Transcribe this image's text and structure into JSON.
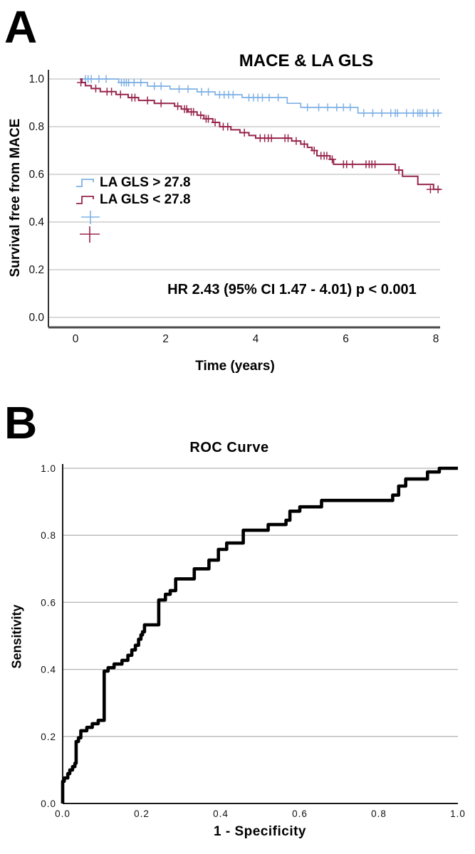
{
  "figure": {
    "panel_a_label": "A",
    "panel_b_label": "B"
  },
  "chart_data": [
    {
      "type": "line",
      "subtype": "kaplan-meier-step",
      "title": "MACE & LA GLS",
      "xlabel": "Time (years)",
      "ylabel": "Survival free from MACE",
      "annotation": "HR 2.43 (95% CI 1.47 - 4.01) p < 0.001",
      "grid": true,
      "legend_position": "inside-left",
      "xlim": [
        -0.6,
        8.7
      ],
      "ylim": [
        0.0,
        1.04
      ],
      "x_ticks": [
        {
          "value": 0,
          "label": "0"
        },
        {
          "value": 2,
          "label": "2"
        },
        {
          "value": 4,
          "label": "4"
        },
        {
          "value": 6,
          "label": "6"
        },
        {
          "value": 8,
          "label": "8"
        }
      ],
      "y_ticks": [
        {
          "value": 1.0,
          "label": "1.0"
        },
        {
          "value": 0.8,
          "label": "0.8"
        },
        {
          "value": 0.6,
          "label": "0.6"
        },
        {
          "value": 0.4,
          "label": "0.4"
        },
        {
          "value": 0.2,
          "label": "0.2"
        },
        {
          "value": 0.0,
          "label": "0.0"
        }
      ],
      "legend": [
        {
          "label": "LA GLS > 27.8"
        },
        {
          "label": "LA GLS < 27.8"
        }
      ],
      "series": [
        {
          "name": "LA GLS > 27.8",
          "color": "#7FB1E5",
          "steps": [
            [
              0.12,
              1.0
            ],
            [
              0.96,
              0.985
            ],
            [
              1.6,
              0.97
            ],
            [
              2.1,
              0.958
            ],
            [
              2.7,
              0.946
            ],
            [
              3.1,
              0.934
            ],
            [
              3.7,
              0.922
            ],
            [
              4.7,
              0.898
            ],
            [
              5.0,
              0.881
            ],
            [
              6.27,
              0.857
            ],
            [
              8.1,
              0.857
            ]
          ],
          "censors": [
            [
              0.22,
              1.0
            ],
            [
              0.28,
              1.0
            ],
            [
              0.35,
              1.0
            ],
            [
              0.52,
              1.0
            ],
            [
              0.68,
              1.0
            ],
            [
              1.02,
              0.985
            ],
            [
              1.08,
              0.985
            ],
            [
              1.13,
              0.985
            ],
            [
              1.18,
              0.985
            ],
            [
              1.3,
              0.985
            ],
            [
              1.45,
              0.985
            ],
            [
              1.75,
              0.97
            ],
            [
              1.9,
              0.97
            ],
            [
              2.3,
              0.958
            ],
            [
              2.5,
              0.958
            ],
            [
              2.8,
              0.946
            ],
            [
              2.95,
              0.946
            ],
            [
              3.2,
              0.934
            ],
            [
              3.3,
              0.934
            ],
            [
              3.4,
              0.934
            ],
            [
              3.5,
              0.934
            ],
            [
              3.85,
              0.922
            ],
            [
              3.95,
              0.922
            ],
            [
              4.05,
              0.922
            ],
            [
              4.15,
              0.922
            ],
            [
              4.3,
              0.922
            ],
            [
              4.5,
              0.922
            ],
            [
              5.15,
              0.881
            ],
            [
              5.4,
              0.881
            ],
            [
              5.6,
              0.881
            ],
            [
              5.8,
              0.881
            ],
            [
              5.95,
              0.881
            ],
            [
              6.1,
              0.881
            ],
            [
              6.4,
              0.857
            ],
            [
              6.6,
              0.857
            ],
            [
              6.8,
              0.857
            ],
            [
              7.0,
              0.857
            ],
            [
              7.1,
              0.857
            ],
            [
              7.15,
              0.857
            ],
            [
              7.35,
              0.857
            ],
            [
              7.5,
              0.857
            ],
            [
              7.6,
              0.857
            ],
            [
              7.65,
              0.857
            ],
            [
              7.7,
              0.857
            ],
            [
              7.8,
              0.857
            ],
            [
              7.95,
              0.857
            ],
            [
              8.05,
              0.857
            ]
          ]
        },
        {
          "name": "LA GLS < 27.8",
          "color": "#97254C",
          "steps": [
            [
              0.1,
              1.0
            ],
            [
              0.14,
              0.985
            ],
            [
              0.22,
              0.972
            ],
            [
              0.35,
              0.96
            ],
            [
              0.55,
              0.947
            ],
            [
              0.9,
              0.935
            ],
            [
              1.17,
              0.922
            ],
            [
              1.4,
              0.91
            ],
            [
              1.75,
              0.898
            ],
            [
              2.2,
              0.886
            ],
            [
              2.35,
              0.874
            ],
            [
              2.5,
              0.862
            ],
            [
              2.7,
              0.848
            ],
            [
              2.85,
              0.833
            ],
            [
              3.05,
              0.818
            ],
            [
              3.2,
              0.8
            ],
            [
              3.45,
              0.787
            ],
            [
              3.65,
              0.775
            ],
            [
              3.85,
              0.763
            ],
            [
              4.0,
              0.752
            ],
            [
              4.8,
              0.74
            ],
            [
              5.0,
              0.727
            ],
            [
              5.15,
              0.713
            ],
            [
              5.25,
              0.7
            ],
            [
              5.36,
              0.678
            ],
            [
              5.65,
              0.663
            ],
            [
              5.73,
              0.642
            ],
            [
              7.1,
              0.618
            ],
            [
              7.26,
              0.592
            ],
            [
              7.6,
              0.558
            ],
            [
              7.95,
              0.537
            ],
            [
              8.1,
              0.537
            ]
          ],
          "censors": [
            [
              0.12,
              0.985
            ],
            [
              0.45,
              0.96
            ],
            [
              0.7,
              0.947
            ],
            [
              0.8,
              0.947
            ],
            [
              1.0,
              0.935
            ],
            [
              1.25,
              0.922
            ],
            [
              1.32,
              0.922
            ],
            [
              1.6,
              0.91
            ],
            [
              1.9,
              0.898
            ],
            [
              2.27,
              0.886
            ],
            [
              2.42,
              0.874
            ],
            [
              2.47,
              0.874
            ],
            [
              2.57,
              0.862
            ],
            [
              2.62,
              0.862
            ],
            [
              2.78,
              0.848
            ],
            [
              2.9,
              0.833
            ],
            [
              2.95,
              0.833
            ],
            [
              3.1,
              0.818
            ],
            [
              3.28,
              0.8
            ],
            [
              3.38,
              0.8
            ],
            [
              3.75,
              0.775
            ],
            [
              4.1,
              0.752
            ],
            [
              4.2,
              0.752
            ],
            [
              4.28,
              0.752
            ],
            [
              4.35,
              0.752
            ],
            [
              4.65,
              0.752
            ],
            [
              4.72,
              0.752
            ],
            [
              4.9,
              0.74
            ],
            [
              5.08,
              0.727
            ],
            [
              5.3,
              0.7
            ],
            [
              5.45,
              0.678
            ],
            [
              5.52,
              0.678
            ],
            [
              5.58,
              0.678
            ],
            [
              5.7,
              0.663
            ],
            [
              5.95,
              0.642
            ],
            [
              6.02,
              0.642
            ],
            [
              6.15,
              0.642
            ],
            [
              6.45,
              0.642
            ],
            [
              6.52,
              0.642
            ],
            [
              6.58,
              0.642
            ],
            [
              6.65,
              0.642
            ],
            [
              7.18,
              0.618
            ],
            [
              7.88,
              0.537
            ],
            [
              8.05,
              0.537
            ]
          ]
        }
      ]
    },
    {
      "type": "line",
      "subtype": "roc-step",
      "title": "ROC Curve",
      "xlabel": "1 - Specificity",
      "ylabel": "Sensitivity",
      "grid": true,
      "xlim": [
        0.0,
        1.0
      ],
      "ylim": [
        0.0,
        1.0
      ],
      "x_ticks": [
        {
          "value": 0.0,
          "label": "0.0"
        },
        {
          "value": 0.2,
          "label": "0.2"
        },
        {
          "value": 0.4,
          "label": "0.4"
        },
        {
          "value": 0.6,
          "label": "0.6"
        },
        {
          "value": 0.8,
          "label": "0.8"
        },
        {
          "value": 1.0,
          "label": "1.0"
        }
      ],
      "y_ticks": [
        {
          "value": 1.0,
          "label": "1.0"
        },
        {
          "value": 0.8,
          "label": "0.8"
        },
        {
          "value": 0.6,
          "label": "0.6"
        },
        {
          "value": 0.4,
          "label": "0.4"
        },
        {
          "value": 0.2,
          "label": "0.2"
        },
        {
          "value": 0.0,
          "label": "0.0"
        }
      ],
      "series": [
        {
          "name": "ROC",
          "color": "#000000",
          "points": [
            [
              0.0,
              0.0
            ],
            [
              0.0,
              0.066
            ],
            [
              0.004,
              0.076
            ],
            [
              0.013,
              0.089
            ],
            [
              0.018,
              0.1
            ],
            [
              0.025,
              0.11
            ],
            [
              0.031,
              0.12
            ],
            [
              0.034,
              0.185
            ],
            [
              0.04,
              0.196
            ],
            [
              0.046,
              0.217
            ],
            [
              0.061,
              0.227
            ],
            [
              0.075,
              0.238
            ],
            [
              0.09,
              0.248
            ],
            [
              0.105,
              0.395
            ],
            [
              0.115,
              0.405
            ],
            [
              0.13,
              0.416
            ],
            [
              0.15,
              0.427
            ],
            [
              0.165,
              0.442
            ],
            [
              0.175,
              0.458
            ],
            [
              0.184,
              0.472
            ],
            [
              0.192,
              0.49
            ],
            [
              0.198,
              0.503
            ],
            [
              0.202,
              0.512
            ],
            [
              0.207,
              0.533
            ],
            [
              0.243,
              0.607
            ],
            [
              0.26,
              0.624
            ],
            [
              0.272,
              0.635
            ],
            [
              0.286,
              0.67
            ],
            [
              0.333,
              0.7
            ],
            [
              0.37,
              0.726
            ],
            [
              0.394,
              0.758
            ],
            [
              0.415,
              0.777
            ],
            [
              0.457,
              0.815
            ],
            [
              0.52,
              0.832
            ],
            [
              0.565,
              0.845
            ],
            [
              0.575,
              0.872
            ],
            [
              0.6,
              0.885
            ],
            [
              0.655,
              0.904
            ],
            [
              0.835,
              0.92
            ],
            [
              0.85,
              0.947
            ],
            [
              0.868,
              0.968
            ],
            [
              0.923,
              0.989
            ],
            [
              0.953,
              1.0
            ],
            [
              1.0,
              1.0
            ]
          ]
        }
      ]
    }
  ]
}
